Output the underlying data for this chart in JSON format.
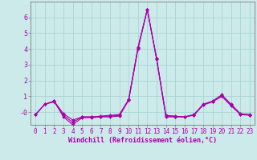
{
  "xlabel": "Windchill (Refroidissement éolien,°C)",
  "hours": [
    0,
    1,
    2,
    3,
    4,
    5,
    6,
    7,
    8,
    9,
    10,
    11,
    12,
    13,
    14,
    15,
    16,
    17,
    18,
    19,
    20,
    21,
    22,
    23
  ],
  "series1": [
    -0.15,
    0.5,
    0.7,
    -0.1,
    -0.5,
    -0.3,
    -0.3,
    -0.25,
    -0.2,
    -0.15,
    0.8,
    4.1,
    6.5,
    3.4,
    -0.2,
    -0.25,
    -0.3,
    -0.15,
    0.5,
    0.7,
    1.1,
    0.5,
    -0.1,
    -0.15
  ],
  "series2": [
    -0.15,
    0.5,
    0.7,
    -0.3,
    -0.8,
    -0.35,
    -0.35,
    -0.3,
    -0.3,
    -0.25,
    0.75,
    4.0,
    6.5,
    3.35,
    -0.3,
    -0.3,
    -0.3,
    -0.2,
    0.45,
    0.65,
    1.0,
    0.4,
    -0.15,
    -0.2
  ],
  "series3": [
    -0.15,
    0.5,
    0.65,
    -0.2,
    -0.65,
    -0.3,
    -0.3,
    -0.27,
    -0.25,
    -0.2,
    0.78,
    4.05,
    6.5,
    3.38,
    -0.25,
    -0.27,
    -0.3,
    -0.17,
    0.48,
    0.68,
    1.05,
    0.45,
    -0.12,
    -0.17
  ],
  "background_color": "#cceaea",
  "grid_color": "#aad4d4",
  "line_color": "#aa00aa",
  "ylim": [
    -0.8,
    7.0
  ],
  "yticks": [
    0,
    1,
    2,
    3,
    4,
    5,
    6
  ],
  "ytick_labels": [
    "-0",
    "1",
    "2",
    "3",
    "4",
    "5",
    "6"
  ],
  "line_width": 0.8,
  "marker": "D",
  "marker_size": 2.0,
  "tick_fontsize": 5.5,
  "xlabel_fontsize": 6.0
}
